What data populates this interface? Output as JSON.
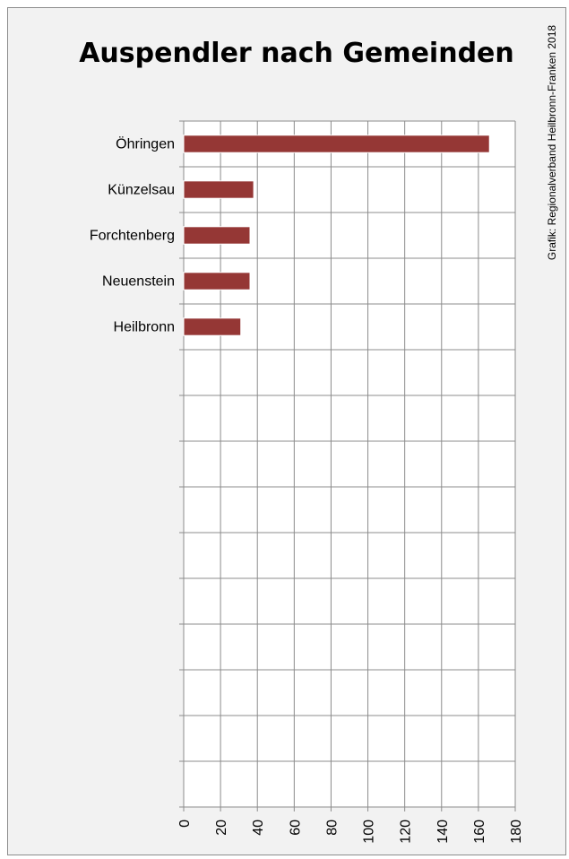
{
  "chart_data": {
    "type": "bar",
    "orientation": "horizontal",
    "title": "Auspendler nach Gemeinden",
    "credit": "Grafik: Regionalverband Heilbronn-Franken 2018",
    "categories": [
      "Öhringen",
      "Künzelsau",
      "Forchtenberg",
      "Neuenstein",
      "Heilbronn",
      "",
      "",
      "",
      "",
      "",
      "",
      "",
      "",
      "",
      ""
    ],
    "values": [
      166,
      38,
      36,
      36,
      31,
      null,
      null,
      null,
      null,
      null,
      null,
      null,
      null,
      null,
      null
    ],
    "xlim": [
      0,
      180
    ],
    "xticks": [
      "0",
      "20",
      "40",
      "60",
      "80",
      "100",
      "120",
      "140",
      "160",
      "180"
    ],
    "grid": true,
    "legend": "none",
    "colors": {
      "bar": "#953735",
      "bar_edge": "#ffffff",
      "grid": "#8c8c8c",
      "plot_bg": "#ffffff",
      "frame_bg": "#f2f2f2"
    }
  }
}
